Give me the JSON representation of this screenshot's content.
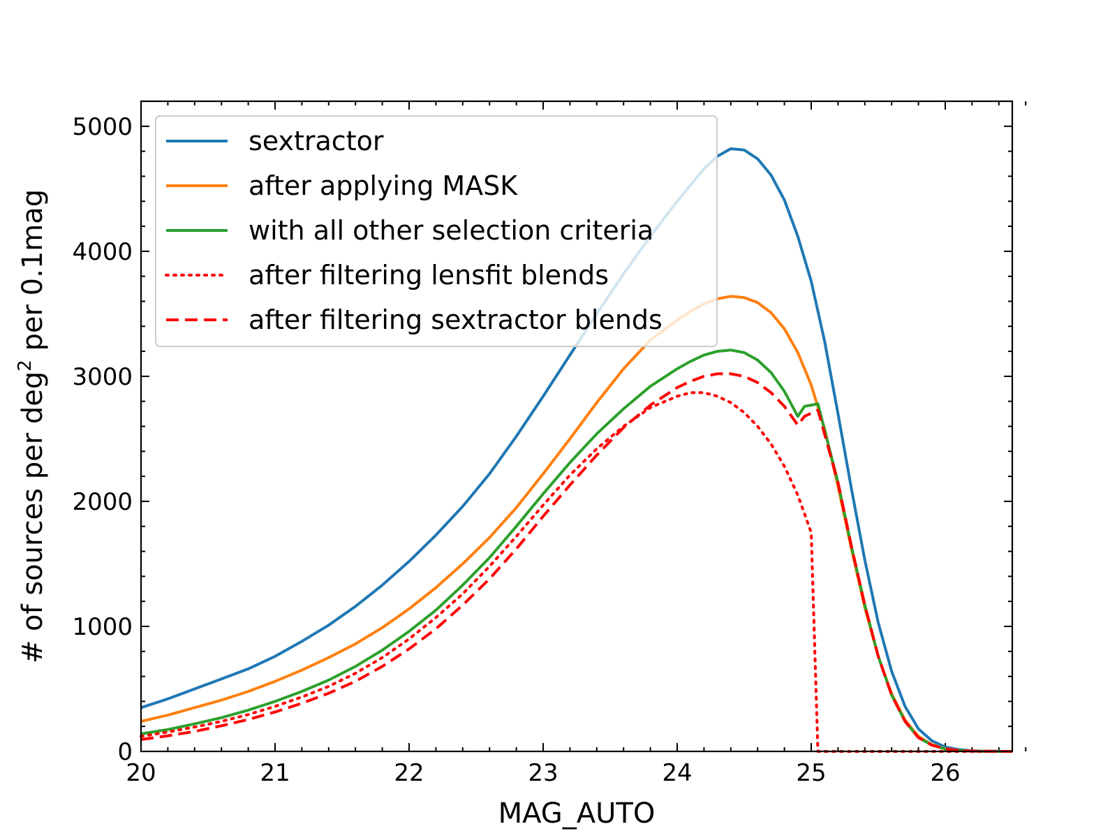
{
  "chart_data": {
    "type": "line",
    "title": "",
    "xlabel": "MAG_AUTO",
    "ylabel": {
      "main": "# of sources per deg",
      "sup": "2",
      "tail": " per 0.1mag"
    },
    "xlim": [
      20,
      26.5
    ],
    "ylim": [
      0,
      5200
    ],
    "x_ticks": [
      20,
      21,
      22,
      23,
      24,
      25,
      26
    ],
    "y_ticks": [
      0,
      1000,
      2000,
      3000,
      4000,
      5000
    ],
    "x_minor_step": 0.2,
    "y_minor_step": 200,
    "grid": false,
    "legend_position": "top-left",
    "series": [
      {
        "name": "sextractor",
        "color": "#1f77b4",
        "dash": "solid",
        "x": [
          20.0,
          20.2,
          20.4,
          20.6,
          20.8,
          21.0,
          21.2,
          21.4,
          21.6,
          21.8,
          22.0,
          22.2,
          22.4,
          22.6,
          22.8,
          23.0,
          23.2,
          23.4,
          23.6,
          23.8,
          24.0,
          24.1,
          24.2,
          24.3,
          24.4,
          24.5,
          24.6,
          24.7,
          24.8,
          24.9,
          25.0,
          25.1,
          25.2,
          25.3,
          25.4,
          25.5,
          25.6,
          25.7,
          25.8,
          25.9,
          26.0,
          26.1,
          26.2,
          26.3,
          26.4,
          26.5
        ],
        "y": [
          350,
          420,
          500,
          580,
          660,
          760,
          880,
          1010,
          1160,
          1330,
          1520,
          1730,
          1960,
          2220,
          2520,
          2840,
          3170,
          3500,
          3820,
          4120,
          4400,
          4530,
          4660,
          4760,
          4820,
          4810,
          4740,
          4610,
          4410,
          4120,
          3760,
          3280,
          2700,
          2100,
          1530,
          1030,
          640,
          360,
          180,
          85,
          35,
          15,
          5,
          2,
          1,
          0
        ]
      },
      {
        "name": "after applying MASK",
        "color": "#ff7f0e",
        "dash": "solid",
        "x": [
          20.0,
          20.2,
          20.4,
          20.6,
          20.8,
          21.0,
          21.2,
          21.4,
          21.6,
          21.8,
          22.0,
          22.2,
          22.4,
          22.6,
          22.8,
          23.0,
          23.2,
          23.4,
          23.6,
          23.8,
          24.0,
          24.1,
          24.2,
          24.3,
          24.4,
          24.5,
          24.6,
          24.7,
          24.8,
          24.9,
          25.0,
          25.1,
          25.2,
          25.3,
          25.4,
          25.5,
          25.6,
          25.7,
          25.8,
          25.9,
          26.0,
          26.1,
          26.2,
          26.3,
          26.4,
          26.5
        ],
        "y": [
          240,
          290,
          350,
          410,
          480,
          560,
          650,
          750,
          860,
          990,
          1140,
          1310,
          1500,
          1710,
          1950,
          2220,
          2500,
          2790,
          3060,
          3290,
          3450,
          3520,
          3580,
          3620,
          3640,
          3630,
          3590,
          3510,
          3380,
          3190,
          2930,
          2580,
          2120,
          1620,
          1150,
          760,
          460,
          250,
          120,
          55,
          22,
          8,
          3,
          1,
          0,
          0
        ]
      },
      {
        "name": "with all other selection criteria",
        "color": "#2ca02c",
        "dash": "solid",
        "x": [
          20.0,
          20.2,
          20.4,
          20.6,
          20.8,
          21.0,
          21.2,
          21.4,
          21.6,
          21.8,
          22.0,
          22.2,
          22.4,
          22.6,
          22.8,
          23.0,
          23.2,
          23.4,
          23.6,
          23.8,
          24.0,
          24.1,
          24.2,
          24.3,
          24.4,
          24.5,
          24.6,
          24.7,
          24.8,
          24.9,
          24.95,
          25.05,
          25.2,
          25.3,
          25.4,
          25.5,
          25.6,
          25.7,
          25.8,
          25.9,
          26.0,
          26.1,
          26.2,
          26.3,
          26.4,
          26.5
        ],
        "y": [
          140,
          175,
          220,
          270,
          330,
          400,
          480,
          570,
          680,
          810,
          960,
          1130,
          1330,
          1550,
          1800,
          2060,
          2310,
          2540,
          2740,
          2920,
          3060,
          3120,
          3170,
          3200,
          3210,
          3190,
          3130,
          3030,
          2880,
          2680,
          2760,
          2780,
          2150,
          1640,
          1170,
          760,
          450,
          240,
          110,
          50,
          20,
          7,
          3,
          1,
          0,
          0
        ]
      },
      {
        "name": "after filtering lensfit blends",
        "color": "#ff0000",
        "dash": "dotted",
        "x": [
          20.0,
          20.2,
          20.4,
          20.6,
          20.8,
          21.0,
          21.2,
          21.4,
          21.6,
          21.8,
          22.0,
          22.2,
          22.4,
          22.6,
          22.8,
          23.0,
          23.2,
          23.4,
          23.6,
          23.8,
          24.0,
          24.1,
          24.2,
          24.3,
          24.4,
          24.5,
          24.6,
          24.7,
          24.8,
          24.9,
          25.0,
          25.05,
          25.1,
          25.3,
          25.5,
          25.7,
          25.9,
          26.1,
          26.3,
          26.5
        ],
        "y": [
          120,
          155,
          195,
          240,
          295,
          360,
          435,
          520,
          625,
          750,
          900,
          1070,
          1260,
          1480,
          1720,
          1970,
          2210,
          2420,
          2600,
          2750,
          2840,
          2870,
          2870,
          2840,
          2790,
          2710,
          2600,
          2460,
          2280,
          2050,
          1750,
          0,
          0,
          0,
          0,
          0,
          0,
          0,
          0,
          0
        ]
      },
      {
        "name": "after filtering sextractor blends",
        "color": "#ff0000",
        "dash": "dashed",
        "x": [
          20.0,
          20.2,
          20.4,
          20.6,
          20.8,
          21.0,
          21.2,
          21.4,
          21.6,
          21.8,
          22.0,
          22.2,
          22.4,
          22.6,
          22.8,
          23.0,
          23.2,
          23.4,
          23.6,
          23.8,
          24.0,
          24.1,
          24.2,
          24.3,
          24.4,
          24.5,
          24.6,
          24.7,
          24.8,
          24.9,
          24.95,
          25.05,
          25.2,
          25.3,
          25.4,
          25.5,
          25.6,
          25.7,
          25.8,
          25.9,
          26.0,
          26.1,
          26.2,
          26.3,
          26.4,
          26.5
        ],
        "y": [
          95,
          125,
          160,
          205,
          255,
          315,
          385,
          465,
          560,
          680,
          820,
          980,
          1170,
          1380,
          1620,
          1880,
          2130,
          2370,
          2590,
          2770,
          2910,
          2960,
          3000,
          3020,
          3020,
          3000,
          2950,
          2870,
          2760,
          2610,
          2680,
          2730,
          2150,
          1640,
          1170,
          760,
          450,
          240,
          110,
          50,
          20,
          7,
          3,
          1,
          0,
          0
        ]
      }
    ]
  }
}
